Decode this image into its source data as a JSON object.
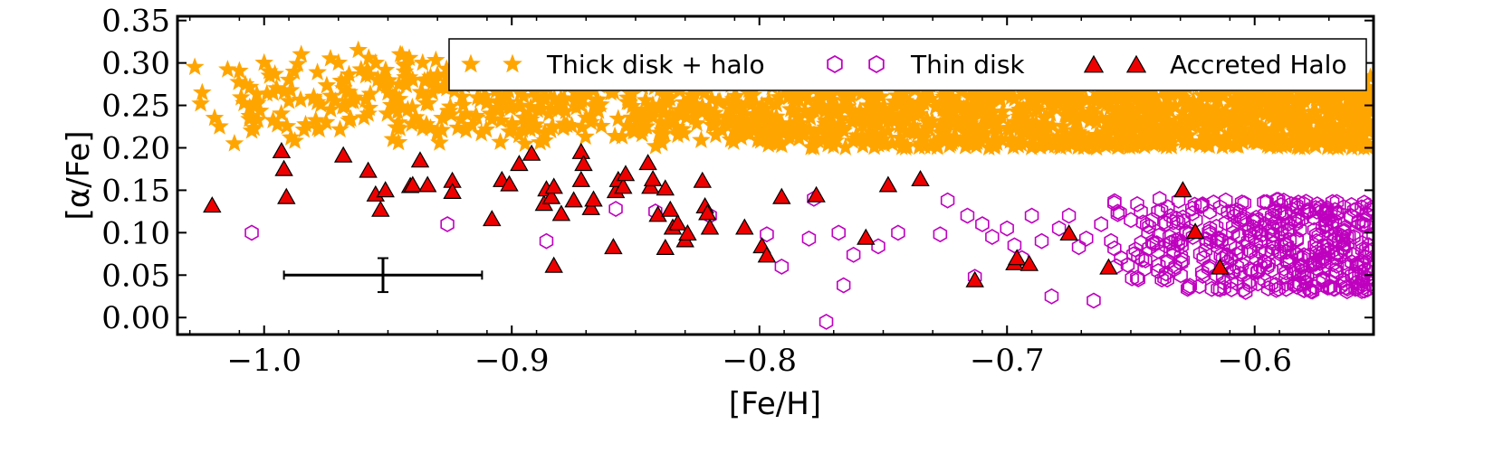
{
  "chart_data": {
    "type": "scatter",
    "xlabel": "[Fe/H]",
    "ylabel": "[α/Fe]",
    "xlim": [
      -1.035,
      -0.552
    ],
    "ylim": [
      -0.02,
      0.355
    ],
    "xticks": [
      -1.0,
      -0.9,
      -0.8,
      -0.7,
      -0.6
    ],
    "xtick_labels": [
      "−1.0",
      "−0.9",
      "−0.8",
      "−0.7",
      "−0.6"
    ],
    "yticks": [
      0.0,
      0.05,
      0.1,
      0.15,
      0.2,
      0.25,
      0.3,
      0.35
    ],
    "ytick_labels": [
      "0.00",
      "0.05",
      "0.10",
      "0.15",
      "0.20",
      "0.25",
      "0.30",
      "0.35"
    ],
    "legend_position": "top-right",
    "colors": {
      "thick": "#ffa500",
      "thin": "#bf00bf",
      "accreted": "#ee0000",
      "edge": "#000000"
    },
    "error_bar": {
      "x": -0.952,
      "y": 0.05,
      "xerr": 0.04,
      "yerr": 0.02
    },
    "series": [
      {
        "name": "Thick disk + halo",
        "marker": "star",
        "generated_note": "dense cloud",
        "points": [
          [
            -1.028,
            0.295
          ],
          [
            -1.025,
            0.265
          ],
          [
            -1.02,
            0.235
          ],
          [
            -1.018,
            0.225
          ],
          [
            -1.012,
            0.205
          ],
          [
            -1.005,
            0.22
          ],
          [
            -1.0,
            0.3
          ],
          [
            -0.998,
            0.29
          ],
          [
            -0.995,
            0.27
          ],
          [
            -0.99,
            0.28
          ],
          [
            -0.99,
            0.255
          ],
          [
            -0.985,
            0.31
          ],
          [
            -0.98,
            0.26
          ],
          [
            -0.975,
            0.23
          ],
          [
            -0.97,
            0.3
          ],
          [
            -0.968,
            0.27
          ],
          [
            -0.965,
            0.255
          ],
          [
            -0.962,
            0.315
          ],
          [
            -0.958,
            0.24
          ],
          [
            -0.955,
            0.3
          ],
          [
            -0.952,
            0.28
          ],
          [
            -0.95,
            0.265
          ],
          [
            -0.948,
            0.21
          ],
          [
            -0.945,
            0.31
          ],
          [
            -0.942,
            0.245
          ],
          [
            -0.94,
            0.28
          ],
          [
            -0.936,
            0.3
          ],
          [
            -0.932,
            0.265
          ],
          [
            -0.928,
            0.235
          ],
          [
            -0.925,
            0.29
          ],
          [
            -0.92,
            0.26
          ],
          [
            -0.915,
            0.3
          ],
          [
            -0.91,
            0.275
          ],
          [
            -0.905,
            0.245
          ],
          [
            -0.9,
            0.225
          ],
          [
            -0.895,
            0.29
          ],
          [
            -0.89,
            0.26
          ],
          [
            -0.885,
            0.24
          ],
          [
            -0.88,
            0.3
          ],
          [
            -0.876,
            0.275
          ],
          [
            -0.872,
            0.25
          ],
          [
            -0.868,
            0.23
          ],
          [
            -0.864,
            0.285
          ],
          [
            -0.86,
            0.265
          ],
          [
            -0.855,
            0.3
          ],
          [
            -0.85,
            0.245
          ],
          [
            -0.846,
            0.225
          ],
          [
            -0.842,
            0.29
          ],
          [
            -0.838,
            0.26
          ],
          [
            -0.833,
            0.215
          ],
          [
            -0.83,
            0.275
          ],
          [
            -0.826,
            0.245
          ],
          [
            -0.82,
            0.29
          ],
          [
            -0.816,
            0.255
          ],
          [
            -0.812,
            0.23
          ],
          [
            -0.808,
            0.3
          ],
          [
            -0.804,
            0.27
          ],
          [
            -0.8,
            0.245
          ],
          [
            -0.796,
            0.215
          ],
          [
            -0.792,
            0.285
          ],
          [
            -0.788,
            0.26
          ],
          [
            -0.784,
            0.235
          ],
          [
            -0.78,
            0.3
          ],
          [
            -0.775,
            0.27
          ],
          [
            -0.771,
            0.245
          ],
          [
            -0.766,
            0.22
          ],
          [
            -0.762,
            0.29
          ],
          [
            -0.758,
            0.265
          ],
          [
            -0.754,
            0.24
          ],
          [
            -0.75,
            0.21
          ],
          [
            -0.745,
            0.28
          ],
          [
            -0.741,
            0.255
          ]
        ]
      },
      {
        "name": "Thin disk",
        "marker": "hexagon",
        "points": [
          [
            -1.005,
            0.1
          ],
          [
            -0.926,
            0.11
          ],
          [
            -0.886,
            0.09
          ],
          [
            -0.858,
            0.128
          ],
          [
            -0.842,
            0.125
          ],
          [
            -0.82,
            0.12
          ],
          [
            -0.797,
            0.098
          ],
          [
            -0.791,
            0.06
          ],
          [
            -0.78,
            0.093
          ],
          [
            -0.778,
            0.14
          ],
          [
            -0.773,
            -0.005
          ],
          [
            -0.768,
            0.1
          ],
          [
            -0.766,
            0.038
          ],
          [
            -0.762,
            0.074
          ],
          [
            -0.752,
            0.084
          ],
          [
            -0.744,
            0.1
          ],
          [
            -0.727,
            0.098
          ],
          [
            -0.724,
            0.138
          ],
          [
            -0.716,
            0.12
          ],
          [
            -0.713,
            0.048
          ],
          [
            -0.71,
            0.11
          ],
          [
            -0.706,
            0.095
          ],
          [
            -0.7,
            0.105
          ],
          [
            -0.697,
            0.085
          ],
          [
            -0.694,
            0.07
          ],
          [
            -0.69,
            0.12
          ],
          [
            -0.686,
            0.09
          ],
          [
            -0.682,
            0.025
          ],
          [
            -0.679,
            0.105
          ],
          [
            -0.675,
            0.12
          ],
          [
            -0.671,
            0.083
          ],
          [
            -0.668,
            0.093
          ],
          [
            -0.665,
            0.02
          ],
          [
            -0.662,
            0.11
          ],
          [
            -0.658,
            0.09
          ],
          [
            -0.654,
            0.07
          ],
          [
            -0.65,
            0.115
          ],
          [
            -0.647,
            0.045
          ],
          [
            -0.643,
            0.1
          ],
          [
            -0.639,
            0.125
          ],
          [
            -0.636,
            0.085
          ],
          [
            -0.632,
            0.06
          ],
          [
            -0.629,
            0.118
          ],
          [
            -0.625,
            0.095
          ],
          [
            -0.622,
            0.075
          ],
          [
            -0.618,
            0.105
          ],
          [
            -0.614,
            0.13
          ],
          [
            -0.61,
            0.085
          ],
          [
            -0.607,
            0.04
          ],
          [
            -0.603,
            0.11
          ],
          [
            -0.6,
            0.095
          ],
          [
            -0.596,
            0.065
          ],
          [
            -0.593,
            0.12
          ],
          [
            -0.589,
            0.1
          ],
          [
            -0.586,
            0.08
          ],
          [
            -0.582,
            0.05
          ],
          [
            -0.578,
            0.125
          ],
          [
            -0.575,
            0.09
          ],
          [
            -0.571,
            0.11
          ],
          [
            -0.567,
            0.07
          ],
          [
            -0.564,
            0.13
          ],
          [
            -0.56,
            0.095
          ],
          [
            -0.557,
            0.04
          ],
          [
            -0.555,
            0.08
          ]
        ]
      },
      {
        "name": "Accreted Halo",
        "marker": "triangle",
        "points": [
          [
            -1.021,
            0.131
          ],
          [
            -0.993,
            0.195
          ],
          [
            -0.992,
            0.174
          ],
          [
            -0.991,
            0.141
          ],
          [
            -0.968,
            0.19
          ],
          [
            -0.958,
            0.172
          ],
          [
            -0.955,
            0.144
          ],
          [
            -0.953,
            0.126
          ],
          [
            -0.951,
            0.149
          ],
          [
            -0.941,
            0.154
          ],
          [
            -0.94,
            0.155
          ],
          [
            -0.937,
            0.184
          ],
          [
            -0.934,
            0.155
          ],
          [
            -0.924,
            0.16
          ],
          [
            -0.924,
            0.147
          ],
          [
            -0.908,
            0.115
          ],
          [
            -0.904,
            0.161
          ],
          [
            -0.901,
            0.156
          ],
          [
            -0.897,
            0.18
          ],
          [
            -0.892,
            0.192
          ],
          [
            -0.887,
            0.133
          ],
          [
            -0.886,
            0.15
          ],
          [
            -0.884,
            0.141
          ],
          [
            -0.883,
            0.06
          ],
          [
            -0.883,
            0.153
          ],
          [
            -0.88,
            0.121
          ],
          [
            -0.875,
            0.137
          ],
          [
            -0.872,
            0.161
          ],
          [
            -0.872,
            0.194
          ],
          [
            -0.871,
            0.18
          ],
          [
            -0.868,
            0.128
          ],
          [
            -0.867,
            0.138
          ],
          [
            -0.859,
            0.082
          ],
          [
            -0.858,
            0.148
          ],
          [
            -0.857,
            0.161
          ],
          [
            -0.855,
            0.153
          ],
          [
            -0.854,
            0.168
          ],
          [
            -0.845,
            0.181
          ],
          [
            -0.844,
            0.153
          ],
          [
            -0.843,
            0.162
          ],
          [
            -0.841,
            0.12
          ],
          [
            -0.838,
            0.081
          ],
          [
            -0.838,
            0.151
          ],
          [
            -0.836,
            0.126
          ],
          [
            -0.835,
            0.105
          ],
          [
            -0.833,
            0.11
          ],
          [
            -0.83,
            0.09
          ],
          [
            -0.829,
            0.098
          ],
          [
            -0.823,
            0.16
          ],
          [
            -0.822,
            0.13
          ],
          [
            -0.821,
            0.122
          ],
          [
            -0.82,
            0.105
          ],
          [
            -0.806,
            0.105
          ],
          [
            -0.799,
            0.083
          ],
          [
            -0.797,
            0.072
          ],
          [
            -0.791,
            0.141
          ],
          [
            -0.777,
            0.143
          ],
          [
            -0.757,
            0.093
          ],
          [
            -0.748,
            0.155
          ],
          [
            -0.735,
            0.162
          ],
          [
            -0.713,
            0.043
          ],
          [
            -0.697,
            0.063
          ],
          [
            -0.696,
            0.069
          ],
          [
            -0.691,
            0.062
          ],
          [
            -0.675,
            0.098
          ],
          [
            -0.659,
            0.058
          ],
          [
            -0.629,
            0.149
          ],
          [
            -0.624,
            0.1
          ],
          [
            -0.614,
            0.058
          ]
        ]
      }
    ]
  }
}
